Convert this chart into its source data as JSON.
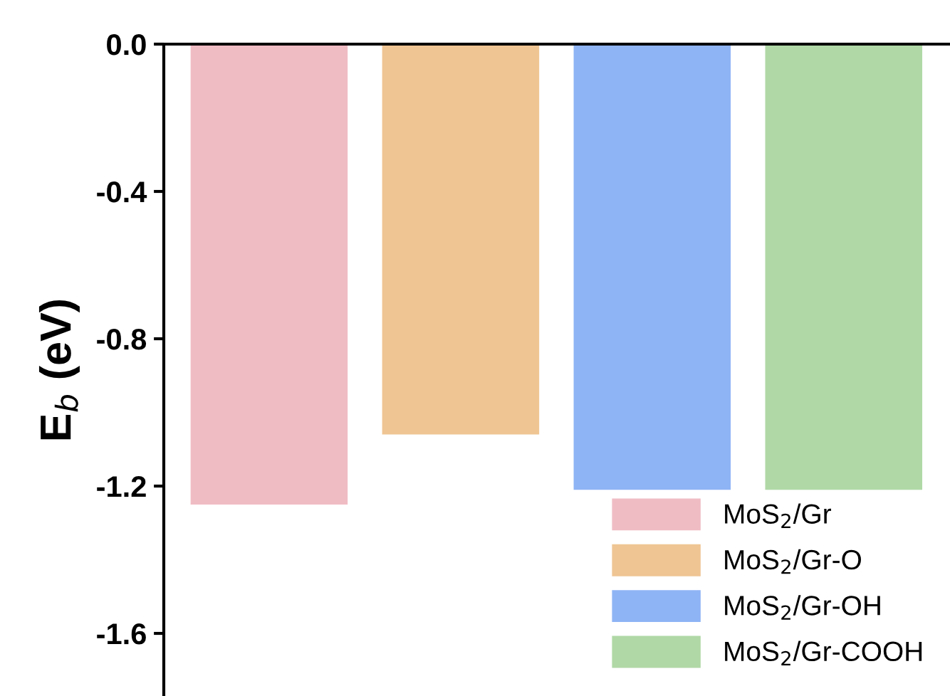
{
  "chart_data": {
    "type": "bar",
    "ylabel": "E$_{b}$ (eV)",
    "categories": [
      null,
      null,
      null,
      null
    ],
    "series": [
      {
        "name": "MoS$_{2}$/Gr",
        "color": "#f0bcc4",
        "values": [
          -1.25,
          null,
          null,
          null
        ]
      },
      {
        "name": "MoS$_{2}$/Gr-O",
        "color": "#efc593",
        "values": [
          null,
          -1.06,
          null,
          null
        ]
      },
      {
        "name": "MoS$_{2}$/Gr-OH",
        "color": "#8fb4f5",
        "values": [
          null,
          null,
          -1.21,
          null
        ]
      },
      {
        "name": "MoS$_{2}$/Gr-COOH",
        "color": "#b0d8a6",
        "values": [
          null,
          null,
          null,
          -1.21
        ]
      }
    ],
    "ylim": [
      -1.77,
      0
    ],
    "yticks": [
      {
        "value": 0,
        "label": "0.0"
      },
      {
        "value": -0.4,
        "label": "-0.4"
      },
      {
        "value": -0.8,
        "label": "-0.8"
      },
      {
        "value": -1.2,
        "label": "-1.2"
      },
      {
        "value": -1.6,
        "label": "-1.6"
      }
    ],
    "tick_labels": "y",
    "grid": false,
    "legend": "bottom right"
  }
}
